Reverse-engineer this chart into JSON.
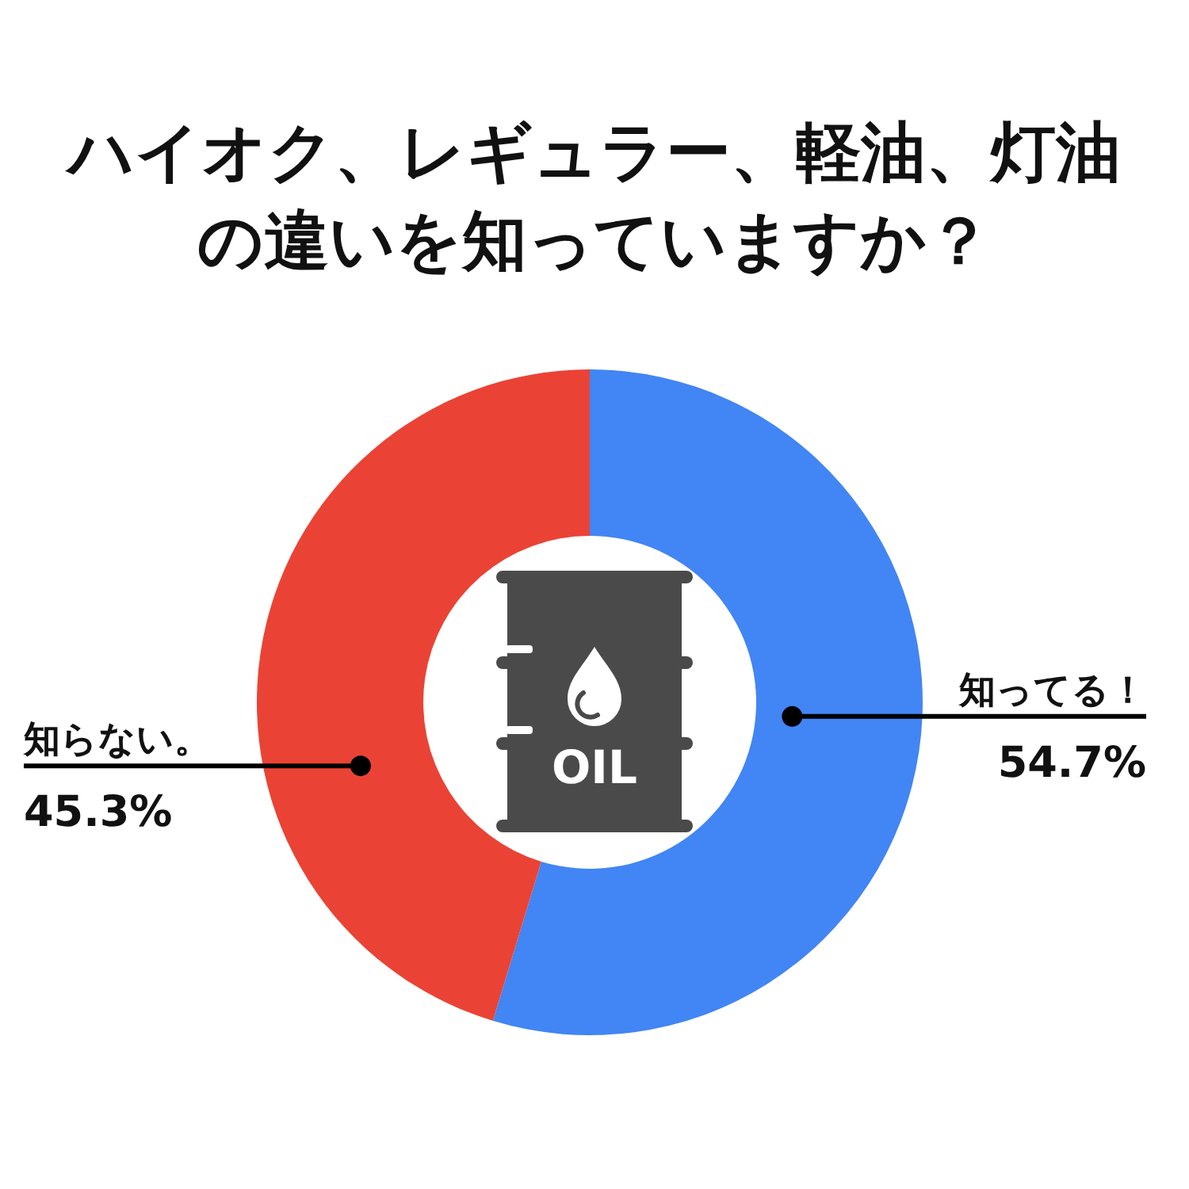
{
  "chart_data": {
    "type": "donut",
    "title": "ハイオク、レギュラー、軽油、灯油の違いを知っていますか？",
    "categories": [
      "知ってる！",
      "知らない。"
    ],
    "values": [
      54.7,
      45.3
    ],
    "colors": [
      "#4285f4",
      "#ea4335"
    ],
    "value_labels": [
      "54.7%",
      "45.3%"
    ],
    "annotations": [
      "OIL"
    ]
  }
}
